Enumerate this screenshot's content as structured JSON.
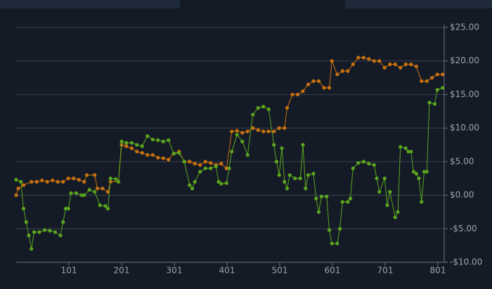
{
  "chart_data": {
    "type": "line",
    "xlim": [
      1,
      813
    ],
    "xticks": [
      101,
      201,
      301,
      401,
      501,
      601,
      701,
      801
    ],
    "ylim": [
      -10,
      25
    ],
    "yticks": [
      {
        "value": -10,
        "label": "-$10.00"
      },
      {
        "value": -5,
        "label": "-$5.00"
      },
      {
        "value": 0,
        "label": "$0.00"
      },
      {
        "value": 5,
        "label": "$5.00"
      },
      {
        "value": 10,
        "label": "$10.00"
      },
      {
        "value": 15,
        "label": "$15.00"
      },
      {
        "value": 20,
        "label": "$20.00"
      },
      {
        "value": 25,
        "label": "$25.00"
      }
    ],
    "grid": true,
    "series": [
      {
        "color": "#c8700f",
        "x": [
          1,
          5,
          15,
          30,
          40,
          50,
          60,
          70,
          80,
          90,
          100,
          110,
          120,
          130,
          135,
          150,
          155,
          165,
          175,
          180,
          195,
          201,
          210,
          220,
          230,
          240,
          250,
          260,
          270,
          280,
          290,
          300,
          310,
          320,
          330,
          340,
          350,
          360,
          370,
          380,
          390,
          400,
          410,
          420,
          430,
          440,
          450,
          460,
          470,
          480,
          490,
          500,
          510,
          515,
          525,
          535,
          545,
          555,
          565,
          575,
          585,
          595,
          600,
          610,
          620,
          630,
          640,
          650,
          660,
          670,
          680,
          690,
          700,
          710,
          720,
          730,
          740,
          750,
          760,
          770,
          780,
          790,
          800,
          810
        ],
        "values": [
          0,
          1,
          1.5,
          2,
          2,
          2.2,
          2,
          2.2,
          2,
          2,
          2.5,
          2.5,
          2.3,
          2,
          3,
          3,
          1,
          1,
          0.5,
          2,
          2,
          7.5,
          7.3,
          7,
          6.5,
          6.3,
          6,
          6,
          5.6,
          5.5,
          5.3,
          6.2,
          6.5,
          5,
          5,
          4.7,
          4.5,
          5,
          4.8,
          4.5,
          4.7,
          4,
          9.5,
          9.6,
          9.3,
          9.5,
          10,
          9.7,
          9.5,
          9.5,
          9.5,
          10,
          10,
          13,
          15,
          15,
          15.5,
          16.5,
          17,
          17,
          16,
          16,
          20,
          18,
          18.5,
          18.5,
          19.5,
          20.5,
          20.5,
          20.3,
          20,
          20,
          19,
          19.5,
          19.5,
          19,
          19.5,
          19.5,
          19.2,
          17,
          17,
          17.5,
          18,
          18
        ]
      },
      {
        "color": "#5aa51e",
        "x": [
          1,
          10,
          15,
          20,
          25,
          30,
          35,
          45,
          55,
          65,
          75,
          85,
          90,
          95,
          100,
          105,
          115,
          125,
          130,
          140,
          150,
          160,
          170,
          175,
          180,
          190,
          195,
          201,
          210,
          220,
          230,
          240,
          250,
          260,
          270,
          280,
          290,
          300,
          310,
          320,
          330,
          335,
          340,
          350,
          360,
          370,
          380,
          385,
          390,
          400,
          405,
          410,
          420,
          430,
          440,
          450,
          460,
          470,
          480,
          490,
          495,
          500,
          505,
          510,
          515,
          520,
          530,
          540,
          545,
          550,
          555,
          565,
          570,
          575,
          580,
          590,
          595,
          600,
          610,
          615,
          620,
          630,
          635,
          640,
          650,
          660,
          670,
          680,
          685,
          690,
          700,
          705,
          710,
          720,
          725,
          730,
          740,
          745,
          750,
          755,
          760,
          765,
          770,
          775,
          780,
          785,
          795,
          800,
          810
        ],
        "values": [
          2.3,
          2,
          -2,
          -4,
          -6,
          -8,
          -5.5,
          -5.5,
          -5.2,
          -5.3,
          -5.5,
          -6,
          -4,
          -2,
          -2,
          0.3,
          0.3,
          0,
          0,
          0.8,
          0.5,
          -1.5,
          -1.6,
          -2,
          2.5,
          2.4,
          2,
          8,
          7.8,
          7.8,
          7.5,
          7.3,
          8.8,
          8.3,
          8.2,
          8,
          8.2,
          6.2,
          6.3,
          5,
          1.5,
          1,
          2,
          3.5,
          4,
          4,
          4.3,
          2,
          1.7,
          1.8,
          4,
          6.5,
          9,
          8,
          6,
          12,
          13,
          13.2,
          12.8,
          7.5,
          5,
          3,
          7,
          2,
          1,
          3,
          2.5,
          2.5,
          7.5,
          1,
          3,
          3.2,
          -0.5,
          -2.5,
          -0.2,
          -0.2,
          -5.2,
          -7.2,
          -7.2,
          -5,
          -1,
          -1,
          -0.5,
          4,
          4.8,
          5,
          4.7,
          4.5,
          2.5,
          0.5,
          2.5,
          -1.5,
          0.5,
          -3.3,
          -2.5,
          7.2,
          7,
          6.5,
          6.5,
          3.5,
          3.2,
          2.5,
          -1,
          3.5,
          3.5,
          13.8,
          13.6,
          15.7,
          16
        ]
      }
    ]
  }
}
